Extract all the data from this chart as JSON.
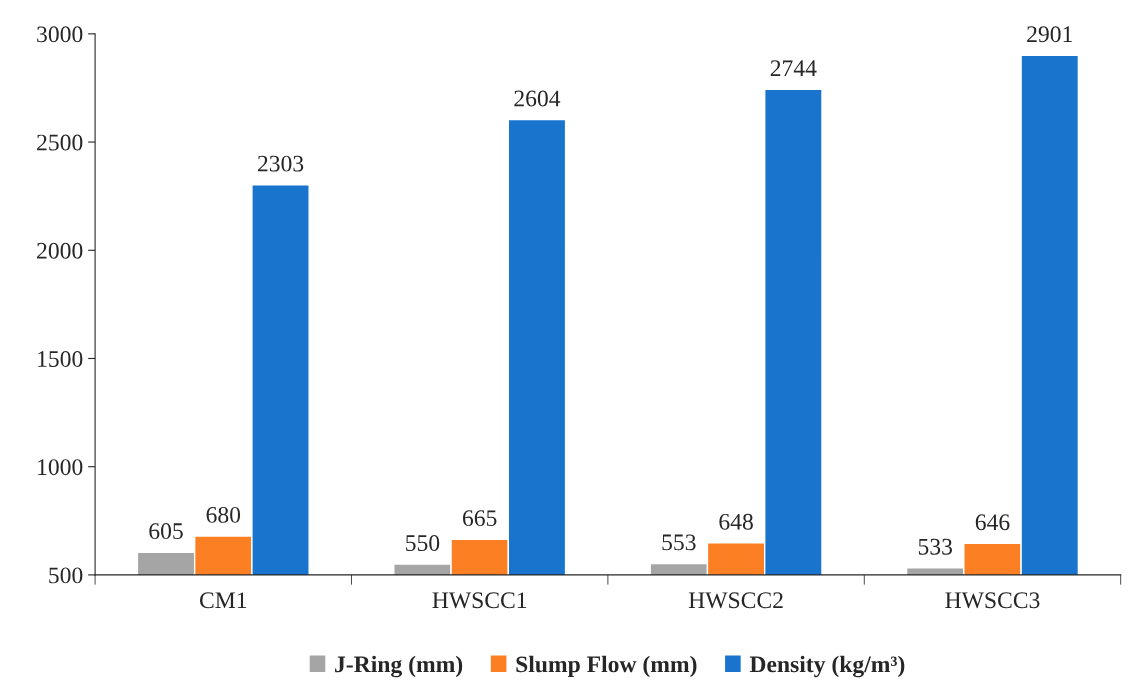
{
  "chart_data": {
    "type": "bar",
    "categories": [
      "CM1",
      "HWSCC1",
      "HWSCC2",
      "HWSCC3"
    ],
    "series": [
      {
        "name": "J-Ring (mm)",
        "color": "#a5a5a5",
        "values": [
          605,
          550,
          553,
          533
        ]
      },
      {
        "name": "Slump Flow (mm)",
        "color": "#fd7f23",
        "values": [
          680,
          665,
          648,
          646
        ]
      },
      {
        "name": "Density (kg/m³)",
        "color": "#1874cd",
        "values": [
          2303,
          2604,
          2744,
          2901
        ]
      }
    ],
    "ylim": [
      500,
      3000
    ],
    "yticks": [
      500,
      1000,
      1500,
      2000,
      2500,
      3000
    ],
    "data_labels": true,
    "legend": "bottom",
    "grid": false
  }
}
